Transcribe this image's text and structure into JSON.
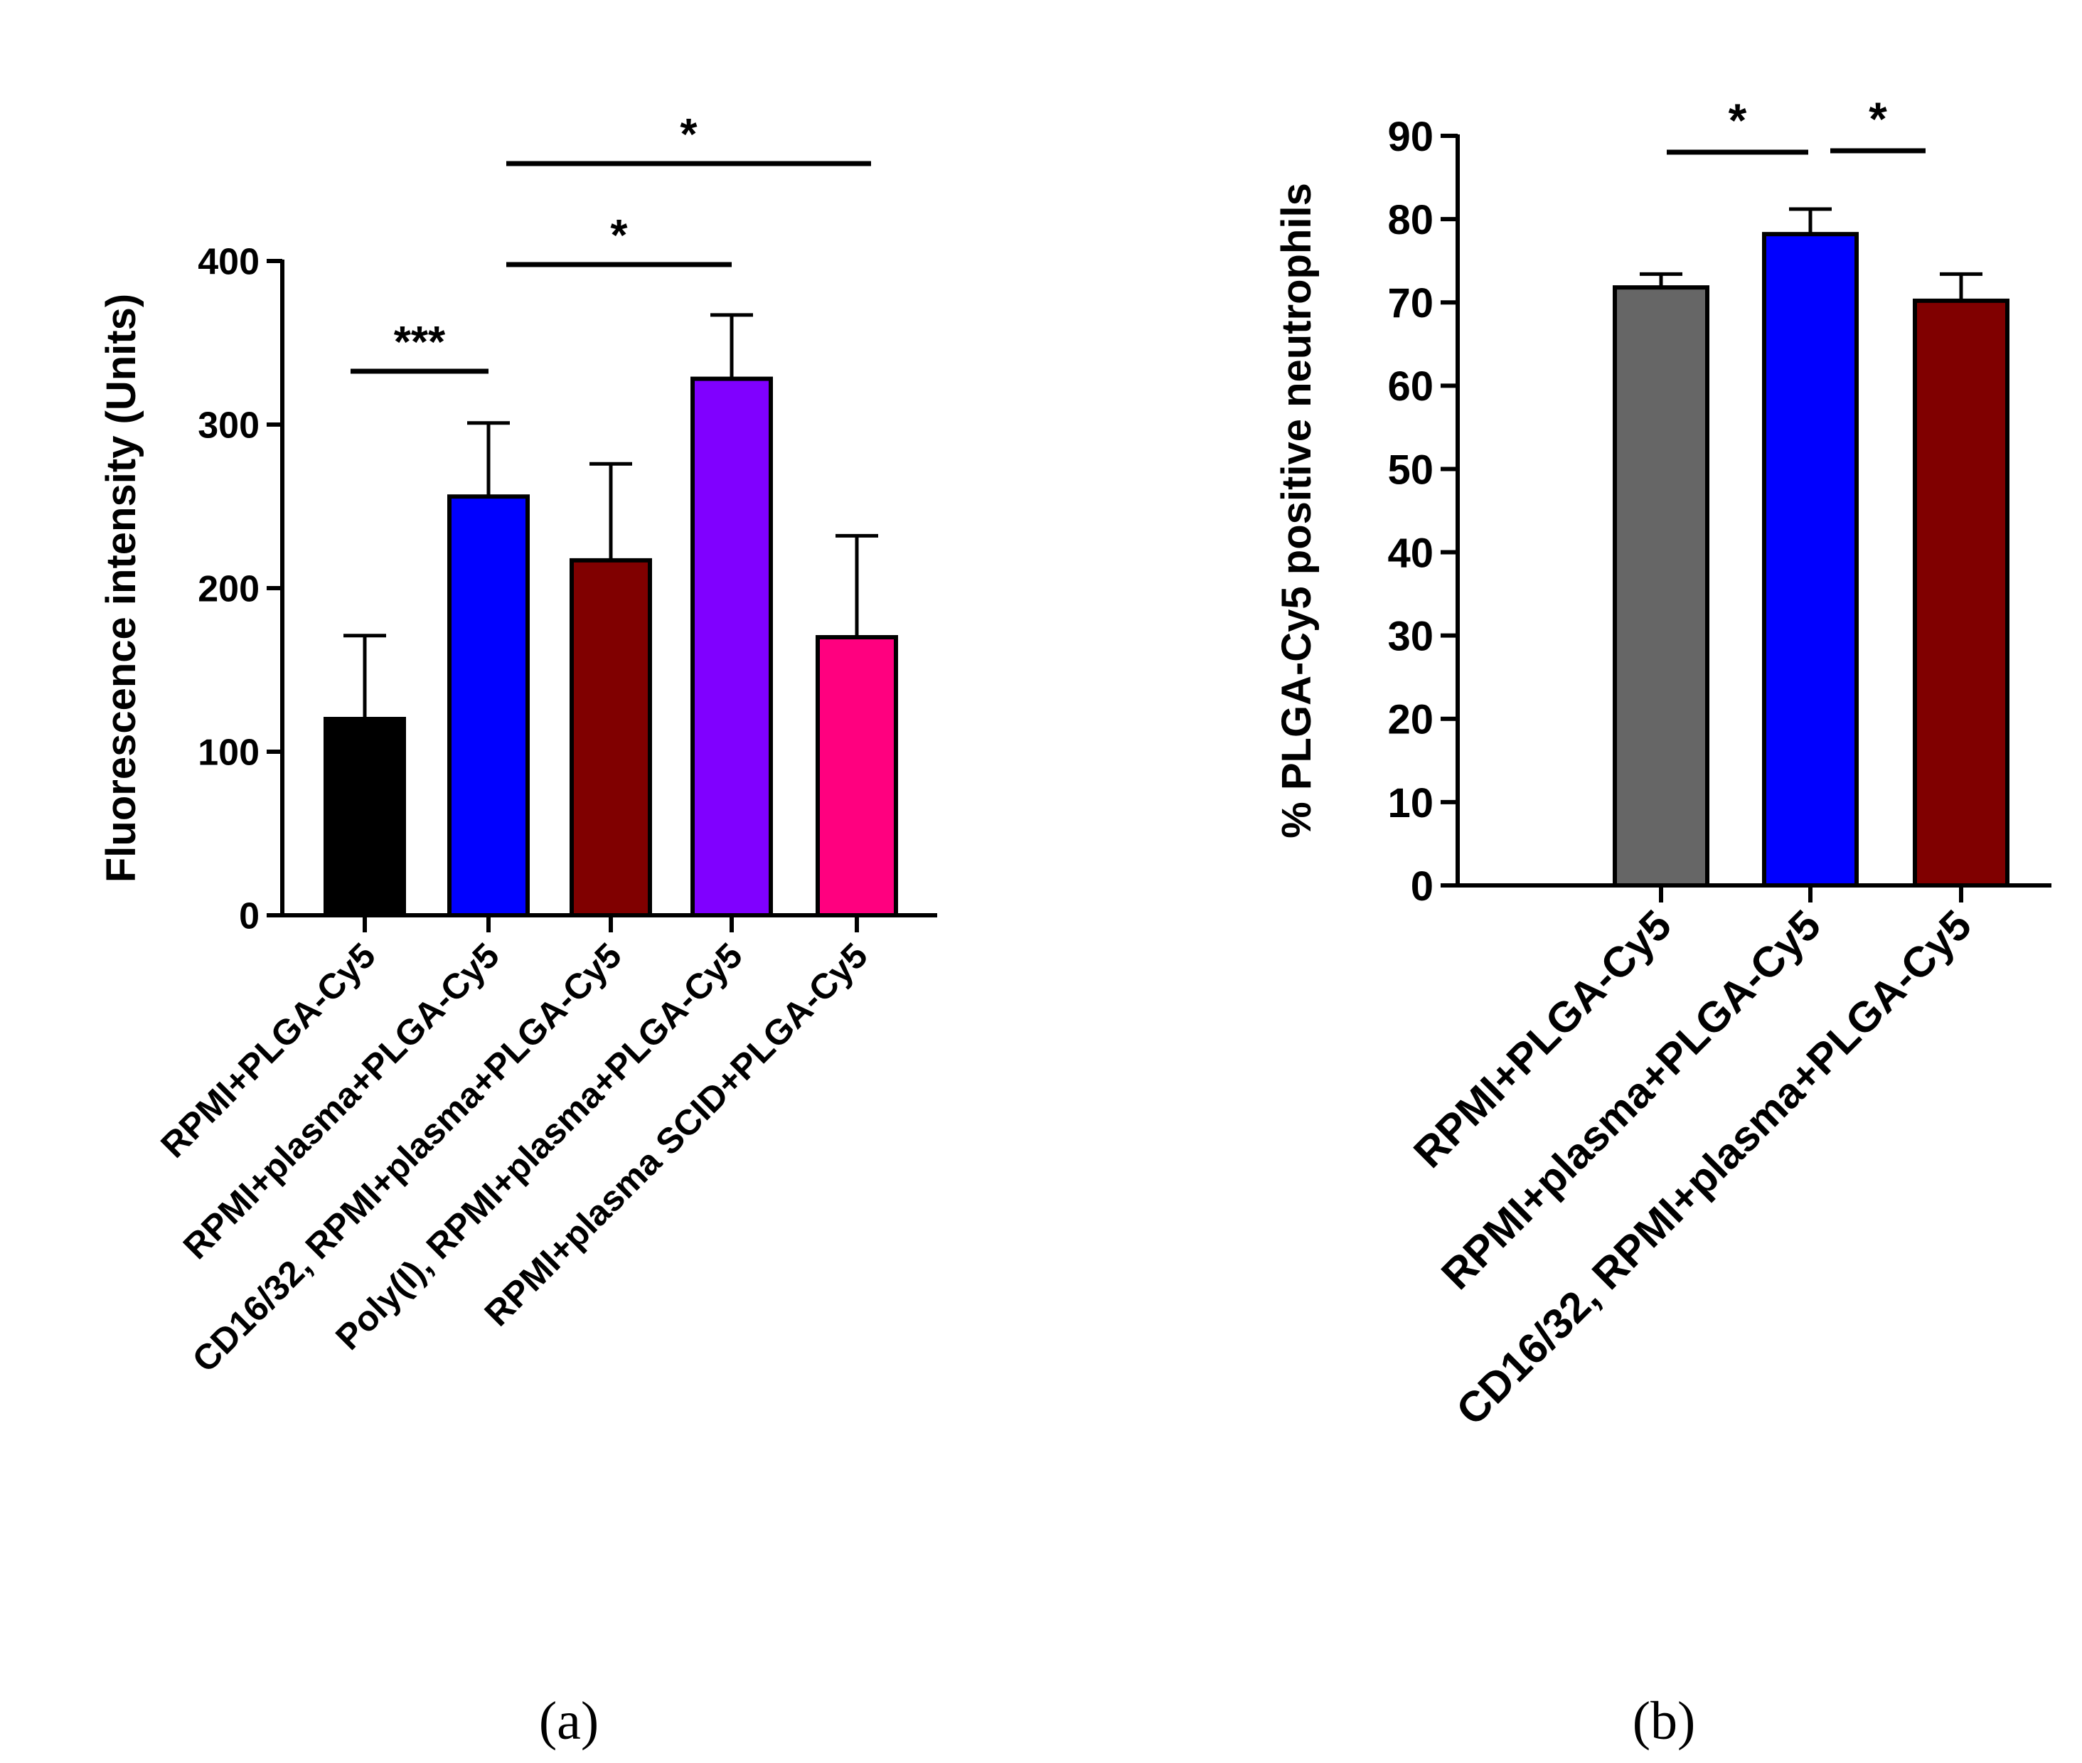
{
  "chart_data": [
    {
      "type": "bar",
      "panel_label": "(a)",
      "ylabel": "Fluorescence intensity (Units)",
      "ylim": [
        0,
        400
      ],
      "yticks": [
        0,
        100,
        200,
        300,
        400
      ],
      "grid": false,
      "categories": [
        "RPMI+PLGA-Cy5",
        "RPMI+plasma+PLGA-Cy5",
        "CD16/32, RPMI+plasma+PLGA-Cy5",
        "Poly(I), RPMI+plasma+PLGA-Cy5",
        "RPMI+plasma SCID+PLGA-Cy5"
      ],
      "values": [
        120,
        256,
        217,
        328,
        170
      ],
      "errors": [
        51,
        45,
        59,
        39,
        62
      ],
      "colors": [
        "#000000",
        "#0000FF",
        "#800000",
        "#8000FF",
        "#FF007F"
      ],
      "significance": [
        {
          "from": 0,
          "to": 1,
          "label": "***"
        },
        {
          "from": 1,
          "to": 3,
          "label": "*"
        },
        {
          "from": 1,
          "to": 4,
          "label": "*"
        }
      ]
    },
    {
      "type": "bar",
      "panel_label": "(b)",
      "ylabel": "% PLGA-Cy5 positive neutrophils",
      "ylim": [
        0,
        90
      ],
      "yticks": [
        0,
        10,
        20,
        30,
        40,
        50,
        60,
        70,
        80,
        90
      ],
      "grid": false,
      "categories": [
        "RPMI+PLGA-Cy5",
        "RPMI+plasma+PLGA-Cy5",
        "CD16/32, RPMI+plasma+PLGA-Cy5"
      ],
      "values": [
        71.8,
        78.2,
        70.2
      ],
      "errors": [
        1.6,
        3.0,
        3.2
      ],
      "colors": [
        "#666666",
        "#0000FF",
        "#800000"
      ],
      "significance": [
        {
          "from": 0,
          "to": 1,
          "label": "*"
        },
        {
          "from": 1,
          "to": 2,
          "label": "*"
        }
      ]
    }
  ]
}
